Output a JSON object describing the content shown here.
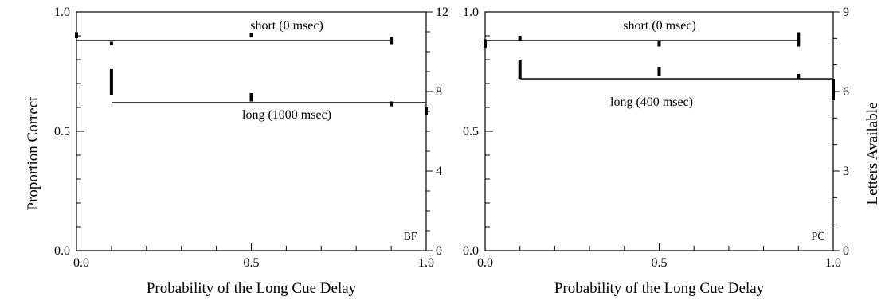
{
  "figure": {
    "y_left_label": "Proportion Correct",
    "y_right_label": "Letters Available"
  },
  "chart_data": [
    {
      "type": "line",
      "panel_label": "BF",
      "xlabel": "Probability of the Long Cue Delay",
      "ylabel": "Proportion Correct",
      "y2label": "",
      "xlim": [
        0.0,
        1.0
      ],
      "ylim": [
        0.0,
        1.0
      ],
      "y2lim": [
        0,
        12
      ],
      "x_ticks": [
        "0.0",
        "0.5",
        "1.0"
      ],
      "y_ticks": [
        "0.0",
        "0.5",
        "1.0"
      ],
      "y2_ticks": [
        "0",
        "4",
        "8",
        "12"
      ],
      "series": [
        {
          "name": "short (0 msec)",
          "fit_line": {
            "x_start": 0.0,
            "x_end": 0.9,
            "y": 0.88
          },
          "points": [
            {
              "x": 0.0,
              "y_low": 0.89,
              "y_high": 0.915
            },
            {
              "x": 0.1,
              "y_low": 0.86,
              "y_high": 0.875
            },
            {
              "x": 0.5,
              "y_low": 0.893,
              "y_high": 0.913
            },
            {
              "x": 0.9,
              "y_low": 0.865,
              "y_high": 0.895
            }
          ]
        },
        {
          "name": "long (1000 msec)",
          "fit_line": {
            "x_start": 0.1,
            "x_end": 1.0,
            "y": 0.62
          },
          "points": [
            {
              "x": 0.1,
              "y_low": 0.65,
              "y_high": 0.76
            },
            {
              "x": 0.5,
              "y_low": 0.625,
              "y_high": 0.66
            },
            {
              "x": 0.9,
              "y_low": 0.605,
              "y_high": 0.625
            },
            {
              "x": 1.0,
              "y_low": 0.57,
              "y_high": 0.6
            }
          ]
        }
      ]
    },
    {
      "type": "line",
      "panel_label": "PC",
      "xlabel": "Probability of the Long Cue Delay",
      "ylabel": "",
      "y2label": "Letters Available",
      "xlim": [
        0.0,
        1.0
      ],
      "ylim": [
        0.0,
        1.0
      ],
      "y2lim": [
        0,
        9
      ],
      "x_ticks": [
        "0.0",
        "0.5",
        "1.0"
      ],
      "y_ticks": [
        "0.0",
        "0.5",
        "1.0"
      ],
      "y2_ticks": [
        "0",
        "3",
        "6",
        "9"
      ],
      "series": [
        {
          "name": "short (0 msec)",
          "fit_line": {
            "x_start": 0.0,
            "x_end": 0.9,
            "y": 0.88
          },
          "points": [
            {
              "x": 0.0,
              "y_low": 0.85,
              "y_high": 0.885
            },
            {
              "x": 0.1,
              "y_low": 0.88,
              "y_high": 0.9
            },
            {
              "x": 0.5,
              "y_low": 0.855,
              "y_high": 0.88
            },
            {
              "x": 0.9,
              "y_low": 0.855,
              "y_high": 0.915
            }
          ]
        },
        {
          "name": "long (400 msec)",
          "fit_line": {
            "x_start": 0.1,
            "x_end": 1.0,
            "y": 0.72
          },
          "points": [
            {
              "x": 0.1,
              "y_low": 0.72,
              "y_high": 0.8
            },
            {
              "x": 0.5,
              "y_low": 0.73,
              "y_high": 0.77
            },
            {
              "x": 0.9,
              "y_low": 0.72,
              "y_high": 0.74
            },
            {
              "x": 1.0,
              "y_low": 0.63,
              "y_high": 0.72
            }
          ]
        }
      ]
    }
  ]
}
